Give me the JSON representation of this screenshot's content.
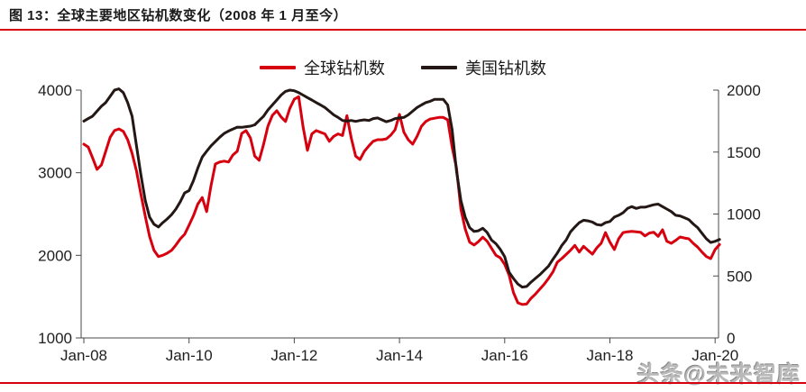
{
  "header": {
    "title": "图 13：全球主要地区钻机数变化（2008 年 1 月至今）"
  },
  "watermark": {
    "text": "头条@未来智库"
  },
  "colors": {
    "accent_red": "#d7000f",
    "line_black": "#231815",
    "axis_gray": "#4a4a4a"
  },
  "chart_data": {
    "type": "line",
    "title": "全球主要地区钻机数变化（2008年1月至今）",
    "grid": false,
    "legend_position": "top-center",
    "x_interval": "monthly",
    "x_start": "Jan-08",
    "x_end": "Feb-20",
    "x_points": 146,
    "x_tick_labels": [
      "Jan-08",
      "Jan-10",
      "Jan-12",
      "Jan-14",
      "Jan-16",
      "Jan-18",
      "Jan-20"
    ],
    "x_tick_month_indices": [
      0,
      24,
      48,
      72,
      96,
      120,
      144
    ],
    "left_axis": {
      "min": 1000,
      "max": 4000,
      "ticks": [
        4000,
        3000,
        2000,
        1000
      ]
    },
    "right_axis": {
      "min": 0,
      "max": 2000,
      "ticks": [
        2000,
        1500,
        1000,
        500,
        0
      ]
    },
    "series": [
      {
        "name": "全球钻机数",
        "axis": "left",
        "color": "#d7000f",
        "values": [
          3345,
          3310,
          3180,
          3040,
          3095,
          3260,
          3430,
          3510,
          3530,
          3500,
          3400,
          3235,
          3020,
          2745,
          2475,
          2230,
          2060,
          1985,
          2000,
          2025,
          2060,
          2125,
          2200,
          2255,
          2365,
          2480,
          2620,
          2700,
          2530,
          2840,
          3105,
          3130,
          3140,
          3130,
          3215,
          3260,
          3475,
          3510,
          3420,
          3200,
          3150,
          3345,
          3565,
          3695,
          3750,
          3675,
          3620,
          3780,
          3890,
          3920,
          3560,
          3270,
          3470,
          3510,
          3490,
          3470,
          3380,
          3440,
          3470,
          3450,
          3690,
          3420,
          3200,
          3160,
          3260,
          3325,
          3380,
          3400,
          3400,
          3410,
          3455,
          3520,
          3705,
          3490,
          3400,
          3345,
          3440,
          3560,
          3620,
          3650,
          3660,
          3670,
          3670,
          3640,
          3310,
          3060,
          2560,
          2320,
          2160,
          2125,
          2165,
          2220,
          2170,
          2085,
          2000,
          1970,
          1890,
          1760,
          1550,
          1425,
          1405,
          1410,
          1480,
          1530,
          1590,
          1650,
          1720,
          1800,
          1918,
          1960,
          2010,
          2060,
          2120,
          2040,
          2110,
          2060,
          2015,
          2090,
          2145,
          2275,
          2160,
          2070,
          2200,
          2275,
          2285,
          2290,
          2285,
          2280,
          2235,
          2270,
          2280,
          2230,
          2309,
          2170,
          2145,
          2180,
          2222,
          2210,
          2200,
          2145,
          2100,
          2040,
          1985,
          1960,
          2070,
          2130
        ]
      },
      {
        "name": "美国钻机数",
        "axis": "right",
        "color": "#231815",
        "values": [
          1750,
          1770,
          1790,
          1830,
          1870,
          1900,
          1950,
          2000,
          2010,
          1980,
          1900,
          1790,
          1550,
          1320,
          1110,
          975,
          918,
          895,
          930,
          960,
          995,
          1040,
          1100,
          1170,
          1189,
          1270,
          1370,
          1460,
          1506,
          1550,
          1585,
          1620,
          1650,
          1670,
          1685,
          1701,
          1700,
          1705,
          1709,
          1720,
          1755,
          1790,
          1840,
          1880,
          1920,
          1960,
          1990,
          2000,
          1995,
          1980,
          1960,
          1940,
          1920,
          1900,
          1880,
          1860,
          1830,
          1800,
          1780,
          1755,
          1750,
          1755,
          1748,
          1755,
          1760,
          1755,
          1770,
          1775,
          1760,
          1745,
          1755,
          1770,
          1775,
          1780,
          1800,
          1830,
          1860,
          1880,
          1900,
          1910,
          1925,
          1925,
          1925,
          1880,
          1680,
          1350,
          1110,
          975,
          890,
          860,
          865,
          885,
          850,
          790,
          760,
          715,
          655,
          530,
          480,
          435,
          410,
          415,
          450,
          480,
          510,
          545,
          580,
          635,
          685,
          745,
          790,
          855,
          895,
          930,
          950,
          945,
          935,
          915,
          910,
          930,
          940,
          975,
          990,
          1010,
          1045,
          1060,
          1045,
          1055,
          1055,
          1065,
          1075,
          1080,
          1060,
          1040,
          1020,
          990,
          985,
          970,
          955,
          920,
          890,
          845,
          800,
          770,
          780,
          795
        ]
      }
    ]
  }
}
